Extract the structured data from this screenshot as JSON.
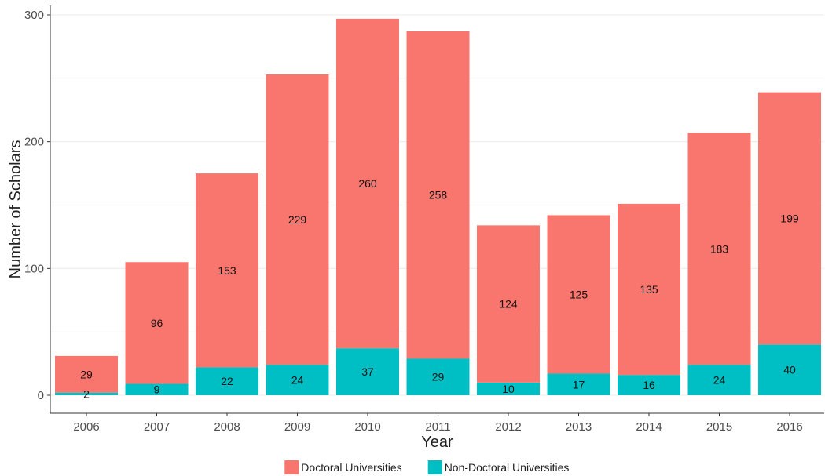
{
  "chart_data": {
    "type": "bar",
    "stacked": true,
    "title": "",
    "xlabel": "Year",
    "ylabel": "Number of Scholars",
    "categories": [
      "2006",
      "2007",
      "2008",
      "2009",
      "2010",
      "2011",
      "2012",
      "2013",
      "2014",
      "2015",
      "2016"
    ],
    "series": [
      {
        "name": "Doctoral Universities",
        "color": "#f8766d",
        "values": [
          29,
          96,
          153,
          229,
          260,
          258,
          124,
          125,
          135,
          183,
          199
        ]
      },
      {
        "name": "Non-Doctoral Universities",
        "color": "#00bfc4",
        "values": [
          2,
          9,
          22,
          24,
          37,
          29,
          10,
          17,
          16,
          24,
          40
        ]
      }
    ],
    "stack_order_bottom_to_top": [
      "Non-Doctoral Universities",
      "Doctoral Universities"
    ],
    "ylim": [
      0,
      300
    ],
    "yticks": [
      "0",
      "100",
      "200",
      "300"
    ],
    "grid": true,
    "legend_position": "bottom"
  }
}
